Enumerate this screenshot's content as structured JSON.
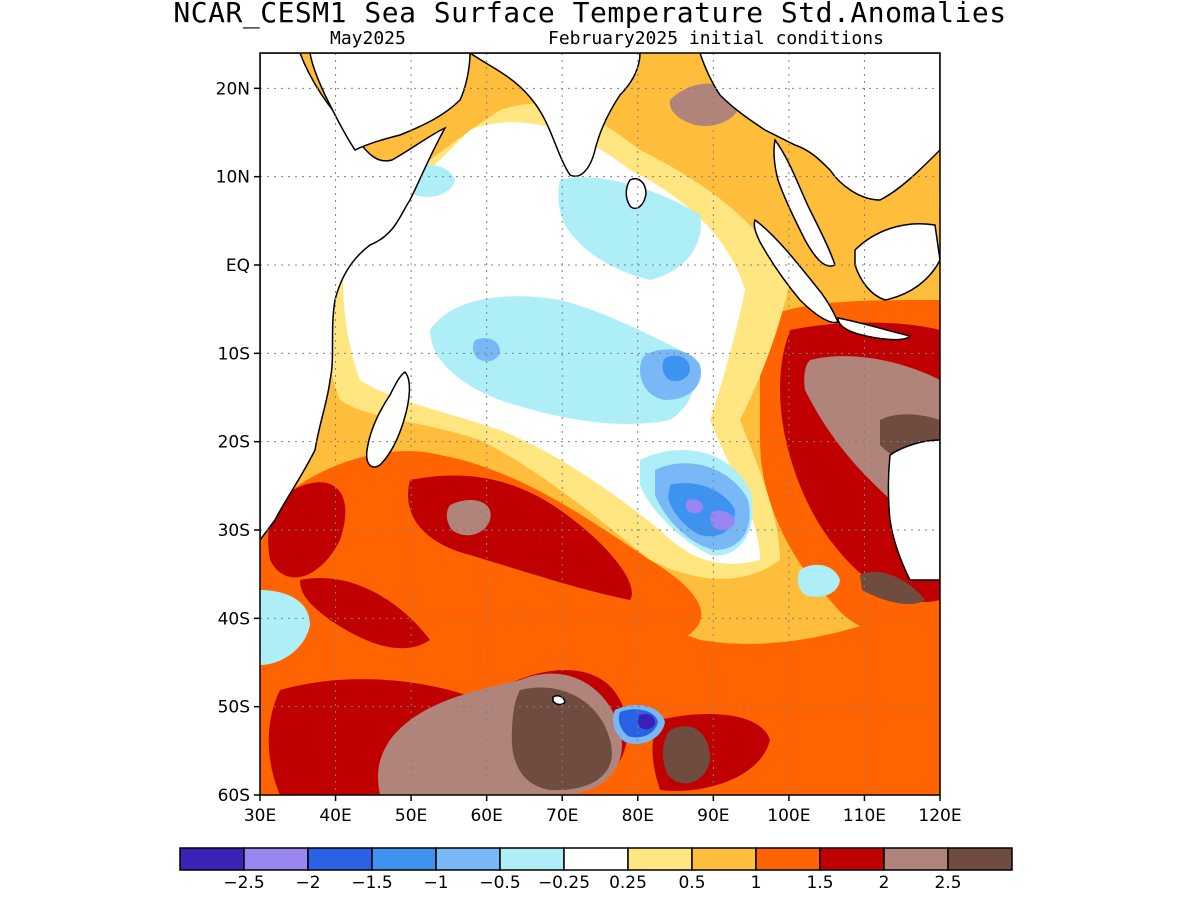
{
  "title": "NCAR_CESM1 Sea Surface Temperature Std.Anomalies",
  "subtitle_left": "May2025",
  "subtitle_right": "February2025 initial conditions",
  "map": {
    "lon_range": [
      30,
      120
    ],
    "lat_range": [
      -60,
      24
    ],
    "lat_ticks": [
      {
        "value": 20,
        "label": "20N"
      },
      {
        "value": 10,
        "label": "10N"
      },
      {
        "value": 0,
        "label": "EQ"
      },
      {
        "value": -10,
        "label": "10S"
      },
      {
        "value": -20,
        "label": "20S"
      },
      {
        "value": -30,
        "label": "30S"
      },
      {
        "value": -40,
        "label": "40S"
      },
      {
        "value": -50,
        "label": "50S"
      },
      {
        "value": -60,
        "label": "60S"
      }
    ],
    "lon_ticks": [
      {
        "value": 30,
        "label": "30E"
      },
      {
        "value": 40,
        "label": "40E"
      },
      {
        "value": 50,
        "label": "50E"
      },
      {
        "value": 60,
        "label": "60E"
      },
      {
        "value": 70,
        "label": "70E"
      },
      {
        "value": 80,
        "label": "80E"
      },
      {
        "value": 90,
        "label": "90E"
      },
      {
        "value": 100,
        "label": "100E"
      },
      {
        "value": 110,
        "label": "110E"
      },
      {
        "value": 120,
        "label": "120E"
      }
    ],
    "grid": "dotted"
  },
  "colorbar": {
    "colors": [
      "#3a22b8",
      "#9a86f0",
      "#2a62e6",
      "#3e92f0",
      "#78b8f6",
      "#aeeef6",
      "#ffffff",
      "#ffe680",
      "#ffbd3c",
      "#ff6400",
      "#c00000",
      "#b0847a",
      "#704c40"
    ],
    "labels": [
      "-2.5",
      "-2",
      "-1.5",
      "-1",
      "-0.5",
      "-0.25",
      "0.25",
      "0.5",
      "1",
      "1.5",
      "2",
      "2.5"
    ]
  }
}
